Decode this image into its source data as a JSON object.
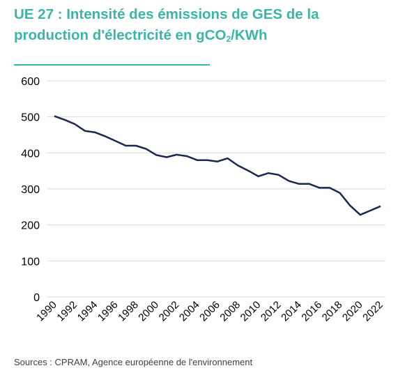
{
  "header": {
    "title_part1": "UE 27 : Intensité des émissions de GES de la production d'électricité en gCO",
    "title_sub": "2",
    "title_part2": "/KWh"
  },
  "footer": {
    "source": "Sources : CPRAM, Agence européenne de l'environnement"
  },
  "colors": {
    "accent": "#3bb6a5",
    "line": "#1a2750",
    "grid": "#d9d9d9"
  },
  "chart_data": {
    "type": "line",
    "title": "UE 27 : Intensité des émissions de GES de la production d'électricité en gCO2/KWh",
    "xlabel": "",
    "ylabel": "",
    "ylim": [
      0,
      600
    ],
    "yticks": [
      0,
      100,
      200,
      300,
      400,
      500,
      600
    ],
    "xtick_labels": [
      "1990",
      "1992",
      "1994",
      "1996",
      "1998",
      "2000",
      "2002",
      "2004",
      "2006",
      "2008",
      "2010",
      "2012",
      "2014",
      "2016",
      "2018",
      "2020",
      "2022"
    ],
    "grid": true,
    "legend": "none",
    "x": [
      1990,
      1991,
      1992,
      1993,
      1994,
      1995,
      1996,
      1997,
      1998,
      1999,
      2000,
      2001,
      2002,
      2003,
      2004,
      2005,
      2006,
      2007,
      2008,
      2009,
      2010,
      2011,
      2012,
      2013,
      2014,
      2015,
      2016,
      2017,
      2018,
      2019,
      2020,
      2021,
      2022
    ],
    "series": [
      {
        "values": [
          502,
          492,
          480,
          461,
          457,
          446,
          433,
          420,
          420,
          411,
          394,
          388,
          395,
          391,
          380,
          380,
          376,
          385,
          365,
          351,
          335,
          344,
          339,
          322,
          314,
          314,
          303,
          303,
          289,
          254,
          228,
          240,
          252
        ]
      }
    ]
  }
}
